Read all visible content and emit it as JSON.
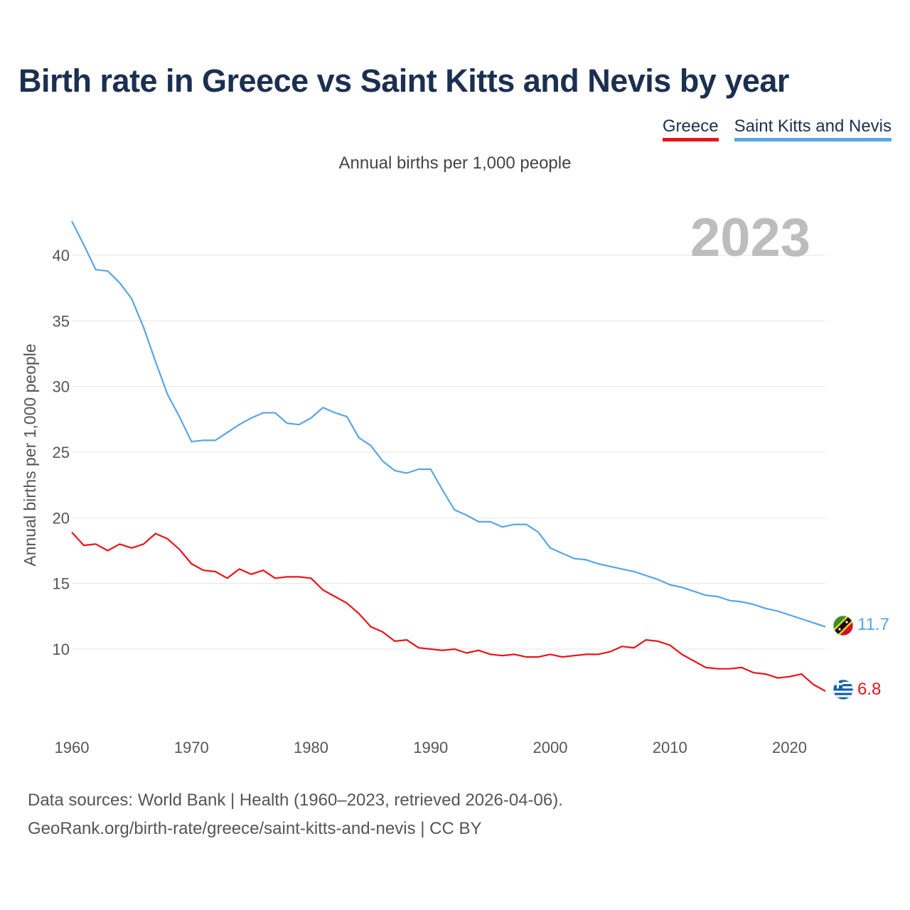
{
  "header": {
    "title": "Birth rate in Greece vs Saint Kitts and Nevis by year",
    "subtitle": "Annual births per 1,000 people"
  },
  "legend": {
    "greece_label": "Greece",
    "skn_label": "Saint Kitts and Nevis"
  },
  "footer": {
    "sources_line1": "Data sources: World Bank | Health (1960–2023, retrieved 2026-04-06).",
    "sources_line2": "GeoRank.org/birth-rate/greece/saint-kitts-and-nevis | CC BY"
  },
  "colors": {
    "greece": "#e8141b",
    "skn": "#5aa5e6",
    "grid": "#e6e6e6",
    "axis_text": "#555555"
  },
  "icons": {
    "greece_flag": "greece-flag-icon",
    "skn_flag": "saint-kitts-and-nevis-flag-icon"
  },
  "chart_data": {
    "type": "line",
    "title": "Birth rate in Greece vs Saint Kitts and Nevis by year",
    "ylabel": "Annual births per 1,000 people",
    "xlabel": "",
    "year_watermark": "2023",
    "xlim": [
      1960,
      2023
    ],
    "ylim": [
      5,
      43
    ],
    "yticks": [
      10,
      15,
      20,
      25,
      30,
      35,
      40
    ],
    "xticks": [
      1960,
      1970,
      1980,
      1990,
      2000,
      2010,
      2020
    ],
    "grid": true,
    "legend_position": "top-right",
    "x": [
      1960,
      1961,
      1962,
      1963,
      1964,
      1965,
      1966,
      1967,
      1968,
      1969,
      1970,
      1971,
      1972,
      1973,
      1974,
      1975,
      1976,
      1977,
      1978,
      1979,
      1980,
      1981,
      1982,
      1983,
      1984,
      1985,
      1986,
      1987,
      1988,
      1989,
      1990,
      1991,
      1992,
      1993,
      1994,
      1995,
      1996,
      1997,
      1998,
      1999,
      2000,
      2001,
      2002,
      2003,
      2004,
      2005,
      2006,
      2007,
      2008,
      2009,
      2010,
      2011,
      2012,
      2013,
      2014,
      2015,
      2016,
      2017,
      2018,
      2019,
      2020,
      2021,
      2022,
      2023
    ],
    "series": [
      {
        "name": "Greece",
        "end_label": "6.8",
        "values": [
          18.9,
          17.9,
          18.0,
          17.5,
          18.0,
          17.7,
          18.0,
          18.8,
          18.4,
          17.6,
          16.5,
          16.0,
          15.9,
          15.4,
          16.1,
          15.7,
          16.0,
          15.4,
          15.5,
          15.5,
          15.4,
          14.5,
          14.0,
          13.5,
          12.7,
          11.7,
          11.3,
          10.6,
          10.7,
          10.1,
          10.0,
          9.9,
          10.0,
          9.7,
          9.9,
          9.6,
          9.5,
          9.6,
          9.4,
          9.4,
          9.6,
          9.4,
          9.5,
          9.6,
          9.6,
          9.8,
          10.2,
          10.1,
          10.7,
          10.6,
          10.3,
          9.6,
          9.1,
          8.6,
          8.5,
          8.5,
          8.6,
          8.2,
          8.1,
          7.8,
          7.9,
          8.1,
          7.3,
          6.8
        ]
      },
      {
        "name": "Saint Kitts and Nevis",
        "end_label": "11.7",
        "values": [
          42.6,
          40.8,
          38.9,
          38.8,
          37.9,
          36.7,
          34.5,
          31.9,
          29.4,
          27.7,
          25.8,
          25.9,
          25.9,
          26.5,
          27.1,
          27.6,
          28.0,
          28.0,
          27.2,
          27.1,
          27.6,
          28.4,
          28.0,
          27.7,
          26.1,
          25.5,
          24.3,
          23.6,
          23.4,
          23.7,
          23.7,
          22.1,
          20.6,
          20.2,
          19.7,
          19.7,
          19.3,
          19.5,
          19.5,
          18.9,
          17.7,
          17.3,
          16.9,
          16.8,
          16.5,
          16.3,
          16.1,
          15.9,
          15.6,
          15.3,
          14.9,
          14.7,
          14.4,
          14.1,
          14.0,
          13.7,
          13.6,
          13.4,
          13.1,
          12.9,
          12.6,
          12.3,
          12.0,
          11.7
        ]
      }
    ]
  }
}
